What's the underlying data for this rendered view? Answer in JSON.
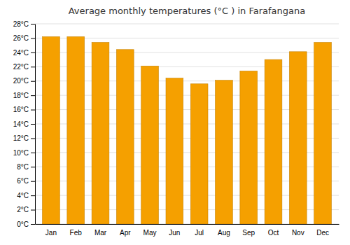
{
  "chart_data": {
    "type": "bar",
    "title": "Average monthly temperatures (°C ) in Farafangana",
    "categories": [
      "Jan",
      "Feb",
      "Mar",
      "Apr",
      "May",
      "Jun",
      "Jul",
      "Aug",
      "Sep",
      "Oct",
      "Nov",
      "Dec"
    ],
    "values": [
      26.2,
      26.2,
      25.4,
      24.4,
      22.1,
      20.4,
      19.6,
      20.1,
      21.4,
      23.0,
      24.1,
      25.4
    ],
    "color": "#F5A000",
    "ylim": [
      0,
      28
    ],
    "yticks": [
      {
        "value": 0,
        "label": "0°C"
      },
      {
        "value": 2,
        "label": "2°C"
      },
      {
        "value": 4,
        "label": "4°C"
      },
      {
        "value": 6,
        "label": "6°C"
      },
      {
        "value": 8,
        "label": "8°C"
      },
      {
        "value": 10,
        "label": "10°C"
      },
      {
        "value": 12,
        "label": "12°C"
      },
      {
        "value": 14,
        "label": "14°C"
      },
      {
        "value": 16,
        "label": "16°C"
      },
      {
        "value": 18,
        "label": "18°C"
      },
      {
        "value": 20,
        "label": "20°C"
      },
      {
        "value": 22,
        "label": "22°C"
      },
      {
        "value": 24,
        "label": "24°C"
      },
      {
        "value": 26,
        "label": "26°C"
      },
      {
        "value": 28,
        "label": "28°C"
      }
    ],
    "grid": true
  }
}
